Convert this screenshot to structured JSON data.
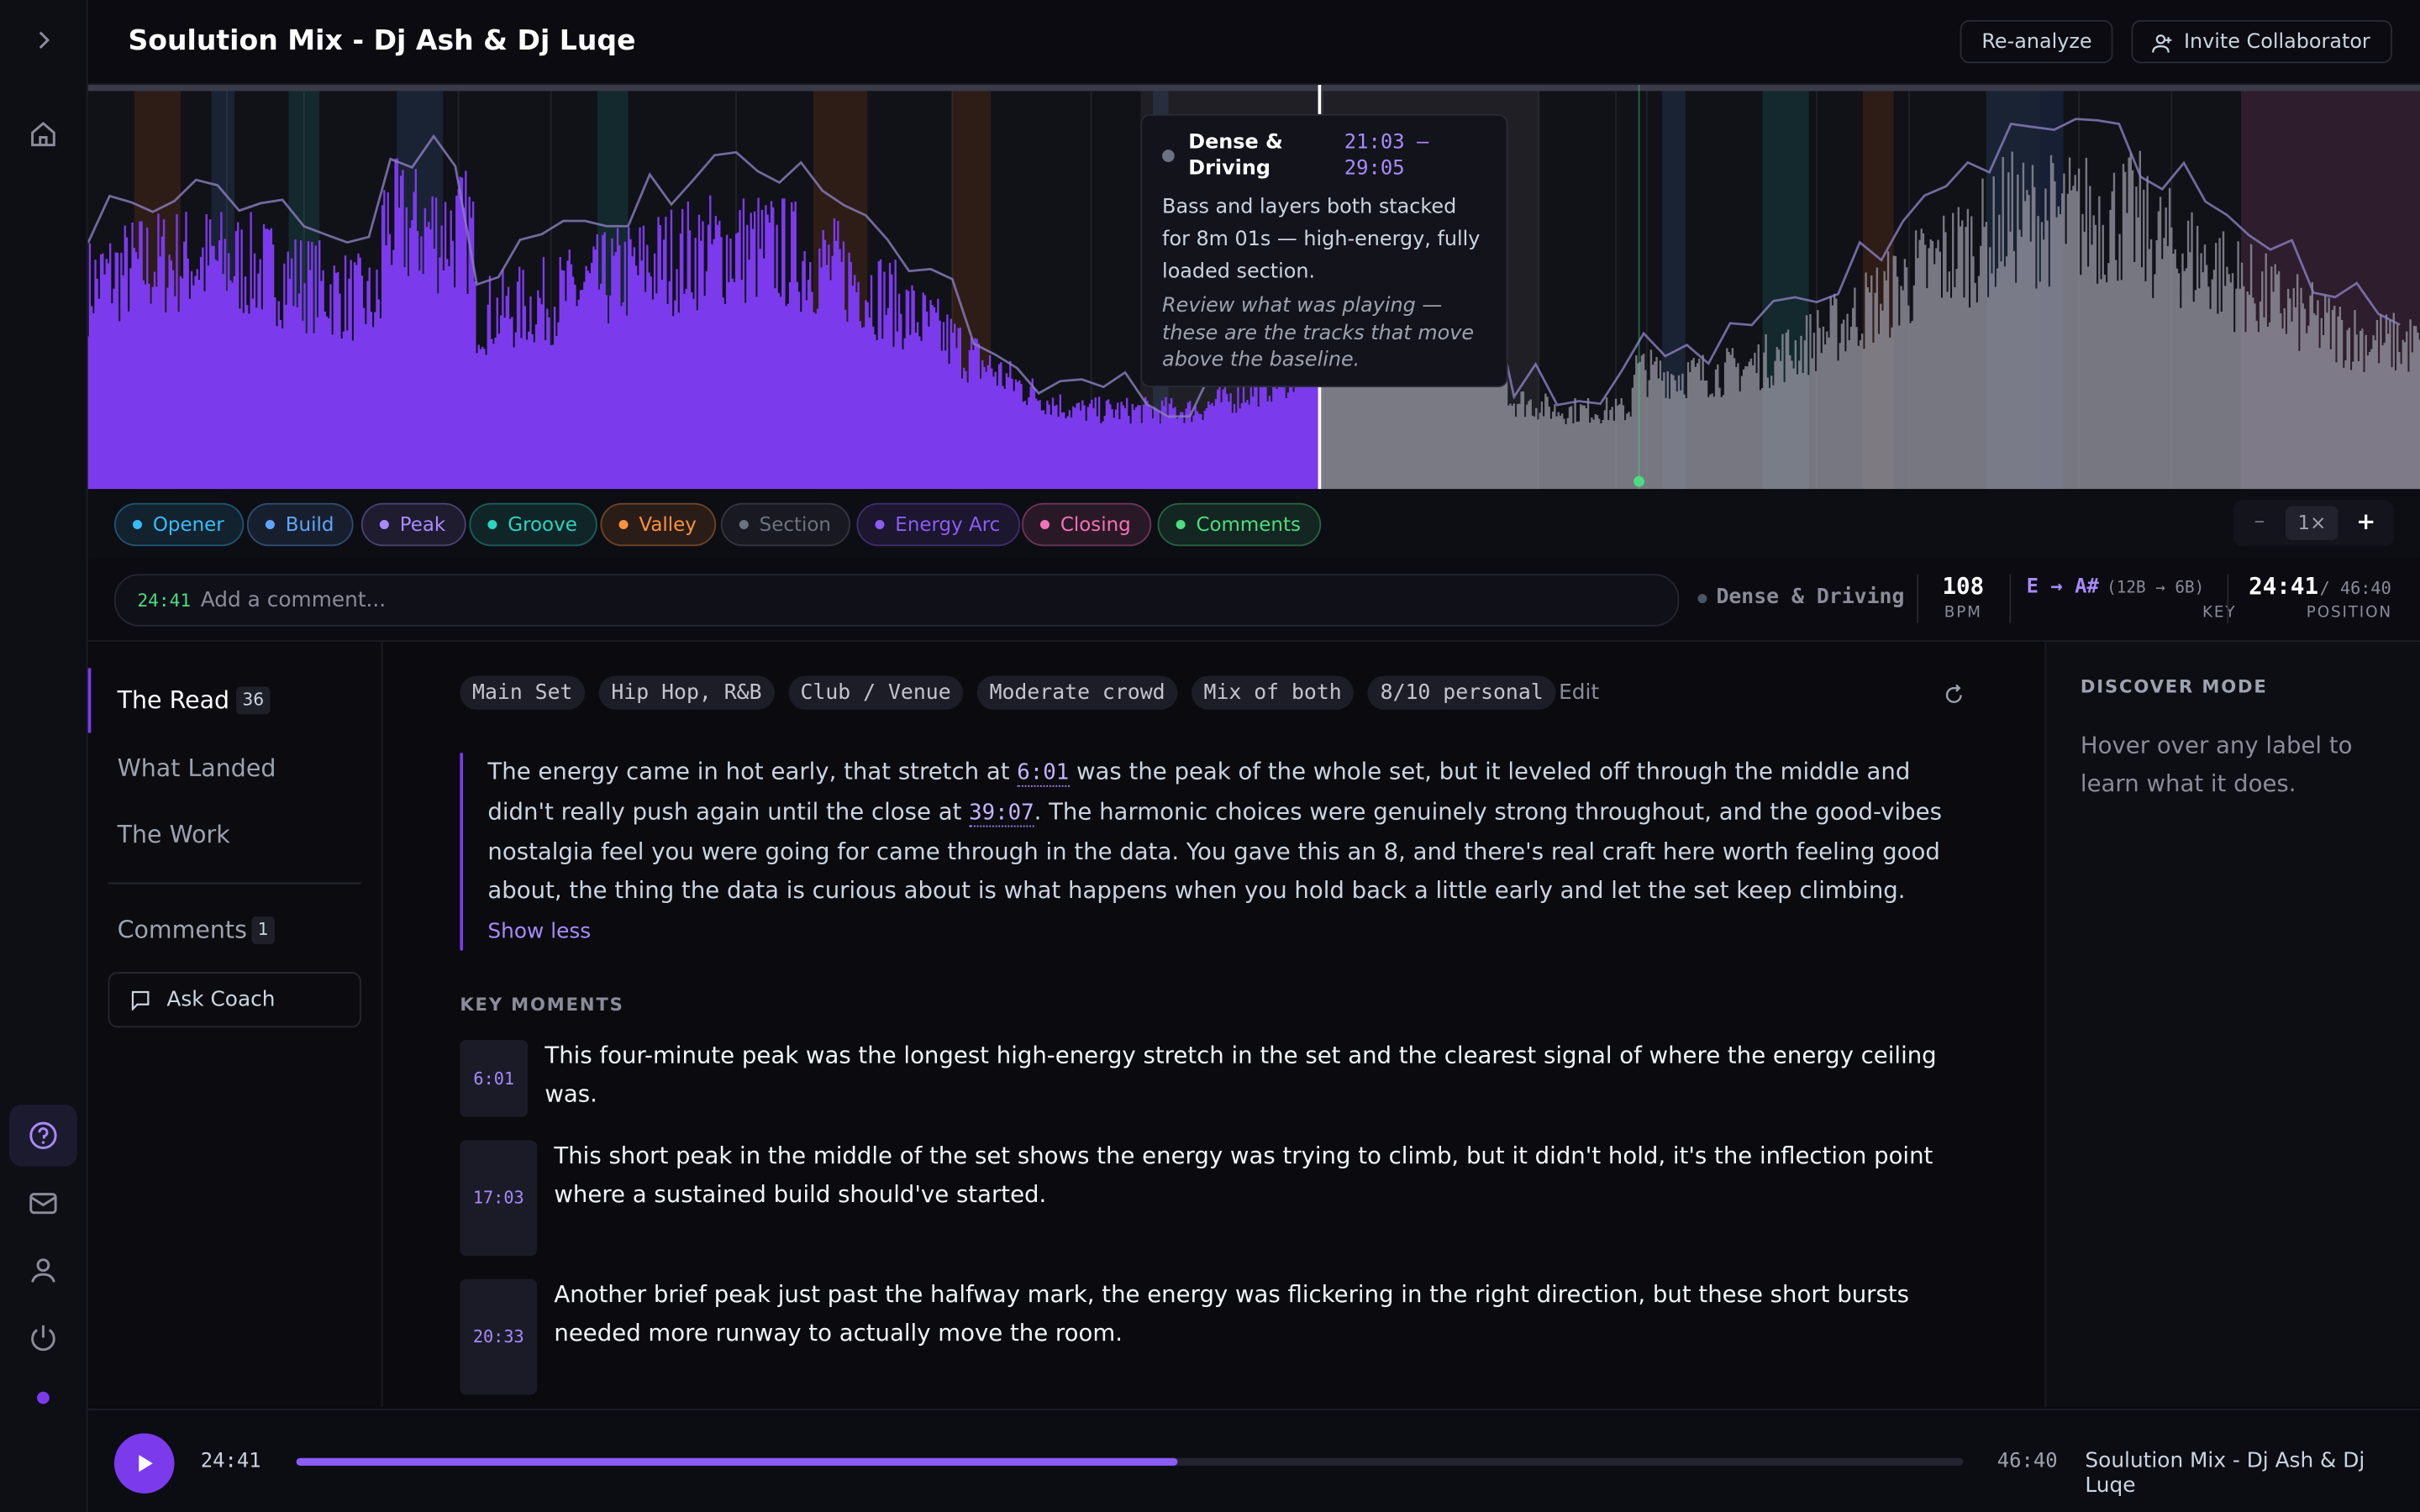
{
  "header": {
    "title": "Soulution Mix - Dj Ash & Dj Luqe",
    "actions": [
      "Re-analyze",
      "Invite Collaborator"
    ]
  },
  "tooltip": {
    "title": "Dense & Driving",
    "range": "21:03 — 29:05",
    "body": "Bass and layers both stacked for 8m 01s — high-energy, fully loaded section.",
    "note": "Review what was playing — these are the tracks that move above the baseline."
  },
  "legend": [
    {
      "label": "Opener",
      "color": "#38bdf8"
    },
    {
      "label": "Build",
      "color": "#60a5fa"
    },
    {
      "label": "Peak",
      "color": "#a78bfa"
    },
    {
      "label": "Groove",
      "color": "#2dd4bf"
    },
    {
      "label": "Valley",
      "color": "#fb923c"
    },
    {
      "label": "Section",
      "color": "#6b7280"
    },
    {
      "label": "Energy Arc",
      "color": "#8b5cf6"
    },
    {
      "label": "Closing",
      "color": "#f472b6"
    },
    {
      "label": "Comments",
      "color": "#4ade80"
    }
  ],
  "zoom": {
    "minus": "–",
    "level": "1×",
    "plus": "+"
  },
  "comment_bar": {
    "time": "24:41",
    "placeholder": "Add a comment...",
    "section": "Dense & Driving",
    "bpm": 108,
    "bpm_label": "BPM",
    "key": "E → A#",
    "key_detail": "(12B → 6B)",
    "key_label": "KEY",
    "position": "24:41",
    "duration": "/ 46:40",
    "position_label": "POSITION"
  },
  "nav": {
    "items": [
      {
        "label": "The Read",
        "count": 36
      },
      {
        "label": "What Landed"
      },
      {
        "label": "The Work"
      }
    ],
    "comments": {
      "label": "Comments",
      "count": 1
    },
    "ask_coach": "Ask Coach"
  },
  "read": {
    "chips": [
      "Main Set",
      "Hip Hop, R&B",
      "Club / Venue",
      "Moderate crowd",
      "Mix of both",
      "8/10 personal"
    ],
    "edit": "Edit",
    "paragraph": [
      "The energy came in hot early, that stretch at ",
      "6:01",
      " was the peak of the whole set, but it leveled off through the middle and didn't really push again until the close at ",
      "39:07",
      ". The harmonic choices were genuinely strong throughout, and the good-vibes nostalgia feel you were going for came through in the data. You gave this an 8, and there's real craft here worth feeling good about, the thing the data is curious about is what happens when you hold back a little early and let the set keep climbing."
    ],
    "show_less": "Show less",
    "key_moments_title": "KEY MOMENTS",
    "key_moments": [
      {
        "time": "6:01",
        "text": "This four-minute peak was the longest high-energy stretch in the set and the clearest signal of where the energy ceiling was."
      },
      {
        "time": "17:03",
        "text": "This short peak in the middle of the set shows the energy was trying to climb, but it didn't hold, it's the inflection point where a sustained build should've started."
      },
      {
        "time": "20:33",
        "text": "Another brief peak just past the halfway mark, the energy was flickering in the right direction, but these short bursts needed more runway to actually move the room."
      }
    ]
  },
  "discover": {
    "title": "DISCOVER MODE",
    "text": "Hover over any label to learn what it does."
  },
  "player": {
    "time": "24:41",
    "duration": "46:40",
    "track": "Soulution Mix - Dj Ash & Dj Luqe"
  }
}
